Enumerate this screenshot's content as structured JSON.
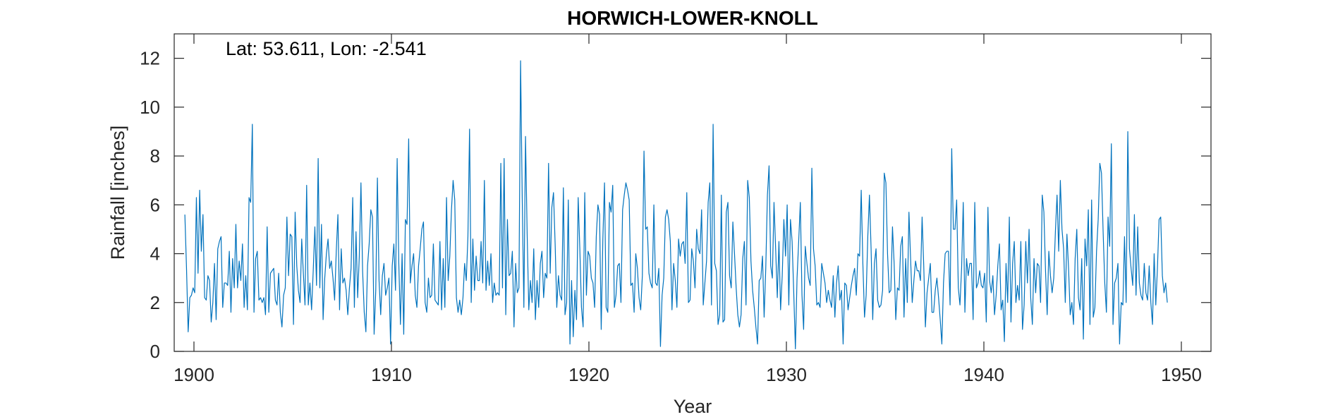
{
  "chart_data": {
    "type": "line",
    "title": "HORWICH-LOWER-KNOLL",
    "annotation": "Lat: 53.611, Lon: -2.541",
    "xlabel": "Year",
    "ylabel": "Rainfall [inches]",
    "xlim": [
      1899,
      1951.5
    ],
    "ylim": [
      0,
      13
    ],
    "xticks": [
      1900,
      1910,
      1920,
      1930,
      1940,
      1950
    ],
    "yticks": [
      0,
      2,
      4,
      6,
      8,
      10,
      12
    ],
    "grid": false,
    "line_color": "#0072bd",
    "series": [
      {
        "x_start": 1899.54,
        "x_step": 0.08333,
        "values": [
          5.6,
          3.4,
          0.8,
          2.2,
          2.3,
          2.6,
          2.4,
          6.3,
          3.2,
          6.6,
          4.1,
          5.6,
          2.2,
          2.1,
          3.1,
          2.9,
          1.2,
          2.0,
          3.6,
          1.3,
          4.2,
          4.5,
          4.7,
          1.8,
          2.8,
          2.8,
          2.7,
          4.1,
          1.6,
          3.8,
          2.6,
          5.2,
          2.6,
          3.7,
          2.9,
          4.4,
          1.8,
          3.1,
          1.7,
          6.3,
          6.1,
          9.3,
          1.6,
          3.8,
          4.1,
          2.1,
          2.2,
          2.0,
          2.2,
          1.5,
          5.1,
          1.6,
          3.2,
          3.3,
          3.4,
          2.1,
          1.9,
          3.2,
          1.6,
          1.0,
          2.3,
          2.6,
          5.5,
          3.1,
          4.8,
          4.7,
          1.1,
          5.7,
          3.5,
          2.5,
          2.0,
          4.6,
          3.2,
          1.9,
          6.8,
          1.9,
          2.8,
          1.7,
          3.3,
          5.1,
          2.7,
          7.9,
          2.6,
          5.2,
          1.3,
          3.0,
          4.0,
          4.6,
          3.4,
          3.7,
          3.0,
          2.1,
          4.1,
          5.6,
          1.7,
          4.2,
          2.8,
          3.0,
          2.5,
          1.5,
          2.6,
          3.4,
          6.3,
          1.8,
          4.9,
          2.2,
          3.9,
          6.9,
          3.3,
          1.6,
          0.8,
          3.5,
          4.4,
          5.8,
          5.5,
          0.7,
          2.5,
          7.1,
          2.9,
          1.5,
          3.1,
          3.6,
          2.3,
          2.6,
          3.0,
          0.3,
          3.5,
          4.4,
          2.5,
          7.9,
          3.6,
          1.1,
          4.0,
          0.7,
          5.4,
          5.2,
          8.7,
          2.8,
          3.5,
          4.0,
          2.3,
          1.8,
          3.5,
          4.2,
          5.0,
          5.3,
          2.0,
          1.6,
          3.0,
          2.2,
          2.3,
          4.4,
          2.1,
          2.0,
          1.9,
          4.5,
          1.7,
          3.8,
          1.8,
          6.3,
          2.9,
          3.9,
          5.8,
          7.0,
          6.2,
          2.2,
          1.6,
          2.1,
          1.5,
          2.2,
          3.6,
          2.9,
          4.7,
          9.1,
          2.0,
          4.6,
          2.5,
          3.9,
          2.9,
          2.9,
          4.5,
          2.8,
          7.0,
          2.5,
          3.7,
          2.7,
          4.0,
          2.0,
          2.8,
          2.3,
          2.4,
          2.3,
          7.7,
          2.6,
          7.9,
          1.5,
          5.4,
          3.1,
          3.2,
          4.1,
          1.0,
          3.6,
          2.4,
          2.6,
          11.9,
          6.3,
          1.8,
          8.8,
          4.8,
          1.7,
          2.9,
          2.0,
          4.2,
          1.3,
          2.9,
          1.8,
          3.6,
          4.1,
          2.2,
          3.2,
          3.0,
          7.7,
          3.2,
          5.9,
          6.5,
          4.4,
          1.8,
          3.1,
          2.3,
          2.1,
          6.7,
          1.5,
          2.0,
          6.2,
          0.3,
          2.9,
          0.6,
          2.5,
          1.3,
          6.3,
          4.2,
          1.8,
          1.0,
          6.5,
          2.3,
          4.1,
          3.9,
          3.0,
          2.8,
          1.8,
          4.7,
          6.0,
          5.6,
          0.9,
          4.6,
          6.9,
          1.8,
          1.6,
          6.1,
          5.7,
          6.8,
          1.8,
          2.3,
          3.5,
          3.6,
          2.0,
          5.8,
          6.4,
          6.9,
          6.6,
          6.2,
          2.7,
          2.8,
          1.6,
          4.0,
          3.4,
          2.2,
          1.7,
          3.1,
          8.2,
          5.0,
          5.1,
          3.2,
          2.8,
          2.6,
          6.0,
          2.8,
          2.7,
          3.4,
          0.2,
          2.3,
          3.0,
          5.5,
          5.8,
          5.4,
          4.5,
          1.7,
          3.6,
          2.9,
          1.8,
          4.6,
          3.9,
          4.4,
          4.5,
          3.6,
          6.5,
          2.0,
          2.1,
          4.2,
          3.7,
          2.6,
          5.0,
          4.2,
          4.0,
          5.8,
          1.9,
          2.8,
          3.7,
          6.1,
          6.9,
          1.9,
          9.3,
          3.6,
          3.3,
          1.1,
          1.5,
          6.4,
          1.2,
          1.3,
          5.7,
          6.1,
          3.1,
          2.6,
          5.3,
          4.0,
          2.6,
          1.5,
          1.0,
          1.5,
          3.8,
          4.5,
          1.9,
          7.0,
          6.3,
          3.7,
          2.5,
          1.8,
          1.0,
          0.3,
          2.9,
          3.0,
          3.9,
          1.4,
          3.4,
          6.4,
          7.6,
          3.5,
          3.0,
          6.1,
          4.2,
          2.2,
          4.5,
          1.7,
          3.1,
          5.4,
          3.9,
          6.0,
          1.9,
          5.4,
          4.5,
          2.4,
          0.1,
          3.0,
          4.5,
          6.1,
          2.3,
          0.9,
          4.3,
          3.6,
          3.0,
          2.7,
          7.5,
          4.2,
          3.5,
          1.9,
          2.0,
          1.8,
          3.6,
          3.2,
          2.8,
          2.0,
          2.5,
          2.1,
          1.8,
          3.1,
          1.4,
          2.8,
          3.5,
          2.1,
          2.5,
          0.3,
          2.8,
          2.7,
          1.7,
          2.2,
          2.7,
          3.1,
          3.4,
          2.3,
          4.0,
          3.9,
          6.6,
          3.6,
          1.4,
          2.3,
          4.7,
          6.4,
          4.2,
          1.3,
          3.6,
          4.2,
          2.1,
          1.8,
          1.9,
          2.5,
          7.3,
          6.9,
          4.0,
          2.4,
          2.5,
          5.1,
          3.6,
          1.3,
          2.6,
          2.5,
          4.3,
          4.7,
          1.4,
          3.8,
          2.0,
          5.7,
          3.8,
          2.0,
          2.9,
          3.7,
          3.3,
          3.3,
          2.9,
          5.5,
          3.5,
          1.0,
          2.4,
          3.0,
          3.6,
          1.6,
          1.6,
          2.5,
          3.0,
          2.2,
          1.3,
          0.3,
          2.8,
          4.0,
          4.1,
          4.1,
          1.9,
          8.3,
          5.0,
          5.0,
          6.2,
          2.6,
          1.9,
          3.4,
          6.1,
          1.6,
          3.8,
          3.1,
          3.6,
          3.6,
          1.3,
          6.1,
          2.6,
          2.8,
          3.3,
          2.7,
          2.6,
          3.2,
          1.2,
          5.9,
          2.9,
          2.4,
          3.1,
          1.5,
          2.3,
          3.5,
          4.4,
          1.7,
          2.1,
          0.4,
          3.6,
          2.0,
          5.5,
          1.2,
          3.6,
          4.5,
          2.0,
          2.7,
          2.1,
          4.5,
          0.9,
          1.9,
          4.5,
          2.8,
          5.0,
          2.2,
          1.1,
          3.8,
          2.4,
          3.6,
          3.5,
          2.0,
          6.4,
          5.7,
          3.3,
          1.5,
          4.1,
          3.1,
          2.4,
          3.0,
          4.9,
          6.4,
          4.1,
          7.0,
          5.0,
          4.2,
          2.0,
          4.8,
          3.4,
          1.5,
          2.0,
          1.1,
          3.8,
          5.0,
          2.2,
          1.7,
          3.8,
          0.5,
          4.6,
          3.5,
          5.8,
          1.1,
          6.2,
          1.4,
          1.8,
          4.1,
          5.4,
          7.7,
          7.3,
          4.9,
          2.8,
          1.6,
          5.5,
          4.3,
          8.5,
          1.1,
          2.8,
          3.0,
          3.6,
          0.3,
          2.0,
          1.9,
          4.7,
          2.0,
          9.0,
          4.2,
          3.4,
          2.7,
          5.6,
          2.3,
          5.1,
          2.8,
          2.3,
          2.1,
          3.6,
          2.4,
          2.1,
          3.5,
          2.0,
          1.1,
          4.0,
          1.9,
          3.4,
          5.4,
          5.5,
          3.1,
          2.4,
          2.8,
          2.0
        ]
      }
    ]
  }
}
